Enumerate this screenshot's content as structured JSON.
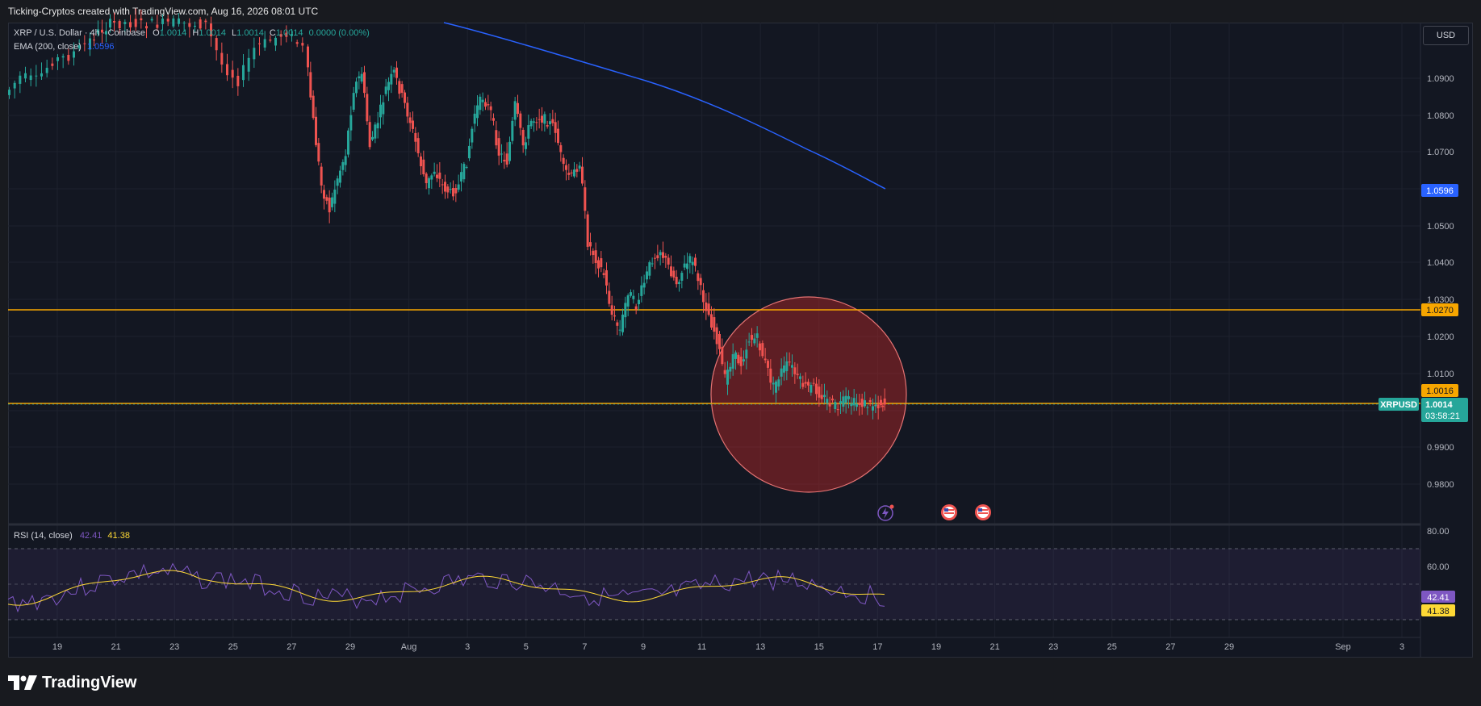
{
  "header": {
    "attribution": "Ticking-Cryptos created with TradingView.com, Aug 16, 2026 08:01 UTC"
  },
  "legend": {
    "symbol": "XRP / U.S. Dollar · 4h · Coinbase",
    "o_label": "O",
    "o_value": "1.0014",
    "h_label": "H",
    "h_value": "1.0014",
    "l_label": "L",
    "l_value": "1.0014",
    "c_label": "C",
    "c_value": "1.0014",
    "change": "0.0000 (0.00%)",
    "ema_label": "EMA (200, close)",
    "ema_value": "1.0596"
  },
  "currency_button": "USD",
  "price_axis": {
    "ticks": [
      "1.0900",
      "1.0800",
      "1.0700",
      "1.0500",
      "1.0400",
      "1.0300",
      "1.0200",
      "1.0100",
      "0.9900",
      "0.9800"
    ]
  },
  "price_tags": {
    "ema": "1.0596",
    "resistance": "1.0270",
    "support": "1.0016",
    "symbol_tag": "XRPUSD",
    "last_price": "1.0014",
    "countdown": "03:58:21"
  },
  "rsi": {
    "label": "RSI (14, close)",
    "value": "42.41",
    "ma_value": "41.38",
    "ticks": [
      "80.00",
      "60.00"
    ]
  },
  "time_axis": {
    "labels": [
      "19",
      "21",
      "23",
      "25",
      "27",
      "29",
      "Aug",
      "3",
      "5",
      "7",
      "9",
      "11",
      "13",
      "15",
      "17",
      "19",
      "21",
      "23",
      "25",
      "27",
      "29",
      "Sep",
      "3"
    ]
  },
  "colors": {
    "background": "#131722",
    "up": "#26a69a",
    "down": "#ef5350",
    "ema_line": "#2962ff",
    "level_line": "#f7a600",
    "rsi_line": "#7e57c2",
    "rsi_ma": "#fdd835",
    "highlight_circle": "#c62828"
  },
  "icons": [
    "flash-event-icon",
    "us-flag-event-icon",
    "us-flag-event-icon"
  ],
  "footer": {
    "brand": "TradingView"
  }
}
